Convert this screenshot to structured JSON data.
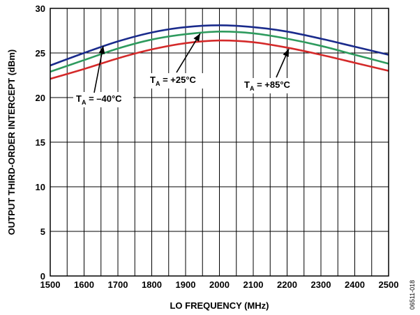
{
  "chart_data": {
    "type": "line",
    "xlabel": "LO FREQUENCY (MHz)",
    "ylabel": "OUTPUT THIRD-ORDER INTERCEPT (dBm)",
    "xlim": [
      1500,
      2500
    ],
    "ylim": [
      0,
      30
    ],
    "x_ticks": [
      "1500",
      "1600",
      "1700",
      "1800",
      "1900",
      "2000",
      "2100",
      "2200",
      "2300",
      "2400",
      "2500"
    ],
    "y_ticks": [
      "0",
      "5",
      "10",
      "15",
      "20",
      "25",
      "30"
    ],
    "grid": true,
    "x": [
      1500,
      1600,
      1700,
      1800,
      1900,
      2000,
      2100,
      2200,
      2300,
      2400,
      2500
    ],
    "series": [
      {
        "name": "TA = –40°C",
        "color": "#1a2b8c",
        "values": [
          23.6,
          25.0,
          26.3,
          27.3,
          27.9,
          28.1,
          27.9,
          27.4,
          26.6,
          25.7,
          24.8
        ]
      },
      {
        "name": "TA = +25°C",
        "color": "#2e9b5e",
        "values": [
          22.9,
          24.2,
          25.5,
          26.5,
          27.1,
          27.4,
          27.2,
          26.6,
          25.8,
          24.8,
          23.8
        ]
      },
      {
        "name": "TA = +85°C",
        "color": "#d42a2a",
        "values": [
          22.1,
          23.2,
          24.4,
          25.4,
          26.1,
          26.4,
          26.2,
          25.6,
          24.8,
          23.9,
          23.0
        ]
      }
    ],
    "annotations": [
      {
        "main": "T",
        "sub": "A",
        "rest": " = –40°C"
      },
      {
        "main": "T",
        "sub": "A",
        "rest": " = +25°C"
      },
      {
        "main": "T",
        "sub": "A",
        "rest": " = +85°C"
      }
    ]
  },
  "figure_id": "06511-018"
}
